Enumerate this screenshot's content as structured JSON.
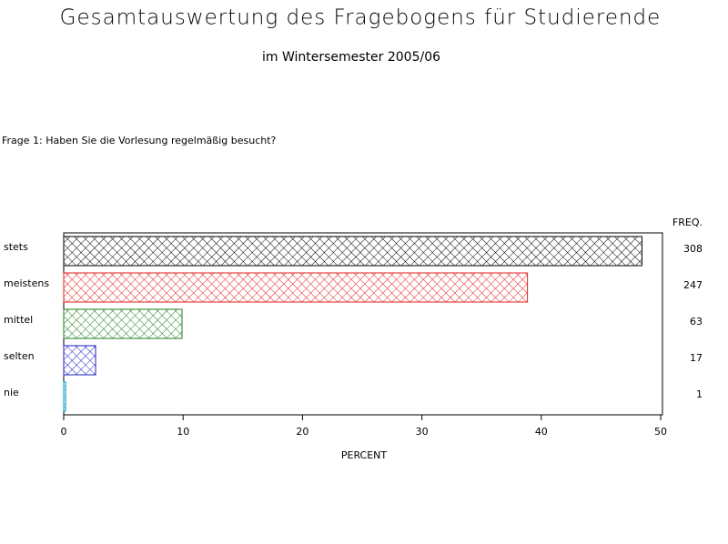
{
  "chart_data": {
    "type": "bar",
    "orientation": "horizontal",
    "title": "Gesamtauswertung des Fragebogens für Studierende",
    "subtitle": "im Wintersemester 2005/06",
    "question": "Frage 1: Haben Sie die Vorlesung regelmäßig besucht?",
    "categories": [
      "stets",
      "meistens",
      "mittel",
      "selten",
      "nie"
    ],
    "values": [
      48.43,
      38.84,
      9.91,
      2.67,
      0.16
    ],
    "colors": [
      "#000000",
      "#e02020",
      "#208020",
      "#2020c0",
      "#00a0c0"
    ],
    "freq_label": "FREQ.",
    "freq": [
      308,
      247,
      63,
      17,
      1
    ],
    "xlabel": "PERCENT",
    "xlim": [
      0,
      50.15
    ],
    "xticks": [
      0,
      10,
      20,
      30,
      40,
      50
    ]
  }
}
